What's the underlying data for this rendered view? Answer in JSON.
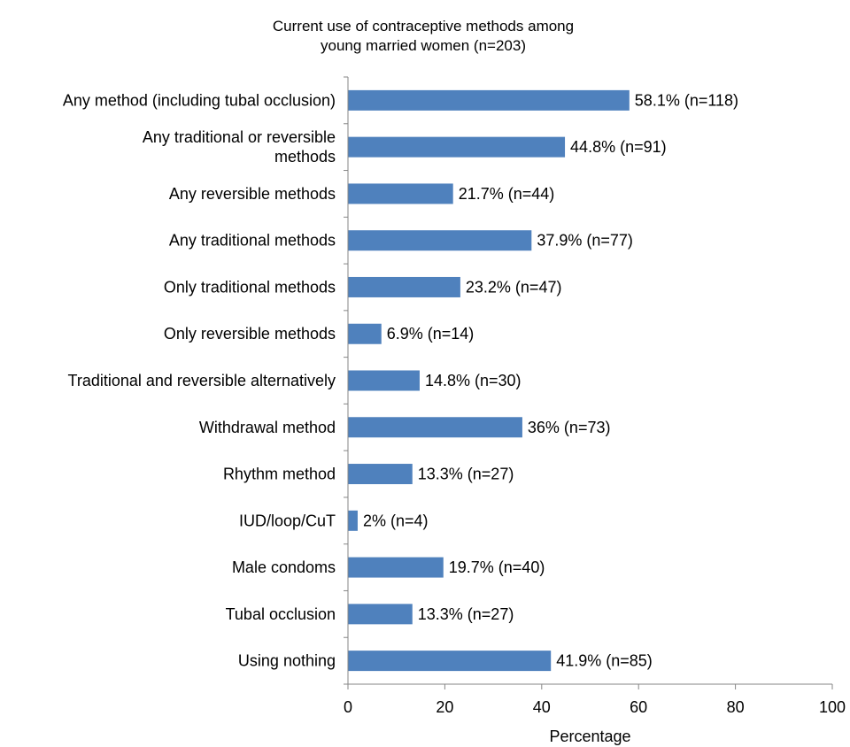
{
  "chart_data": {
    "type": "bar",
    "orientation": "horizontal",
    "title": [
      "Current use of contraceptive methods among",
      "young married women (n=203)"
    ],
    "xlabel": "Percentage",
    "ylabel": "",
    "xlim": [
      0,
      100
    ],
    "x_ticks": [
      0,
      20,
      40,
      60,
      80,
      100
    ],
    "grid": false,
    "bar_color": "#4f81bd",
    "categories": [
      [
        "Any method (including tubal occlusion)"
      ],
      [
        "Any traditional or reversible",
        "methods"
      ],
      [
        "Any reversible methods"
      ],
      [
        "Any traditional methods"
      ],
      [
        "Only traditional methods"
      ],
      [
        "Only reversible methods"
      ],
      [
        "Traditional and reversible alternatively"
      ],
      [
        "Withdrawal method"
      ],
      [
        "Rhythm method"
      ],
      [
        "IUD/loop/CuT"
      ],
      [
        "Male condoms"
      ],
      [
        "Tubal occlusion"
      ],
      [
        "Using nothing"
      ]
    ],
    "values": [
      58.1,
      44.8,
      21.7,
      37.9,
      23.2,
      6.9,
      14.8,
      36,
      13.3,
      2,
      19.7,
      13.3,
      41.9
    ],
    "data_labels": [
      "58.1% (n=118)",
      "44.8% (n=91)",
      "21.7% (n=44)",
      "37.9% (n=77)",
      "23.2% (n=47)",
      "6.9% (n=14)",
      "14.8% (n=30)",
      "36% (n=73)",
      "13.3% (n=27)",
      "2% (n=4)",
      "19.7% (n=40)",
      "13.3% (n=27)",
      "41.9% (n=85)"
    ]
  }
}
